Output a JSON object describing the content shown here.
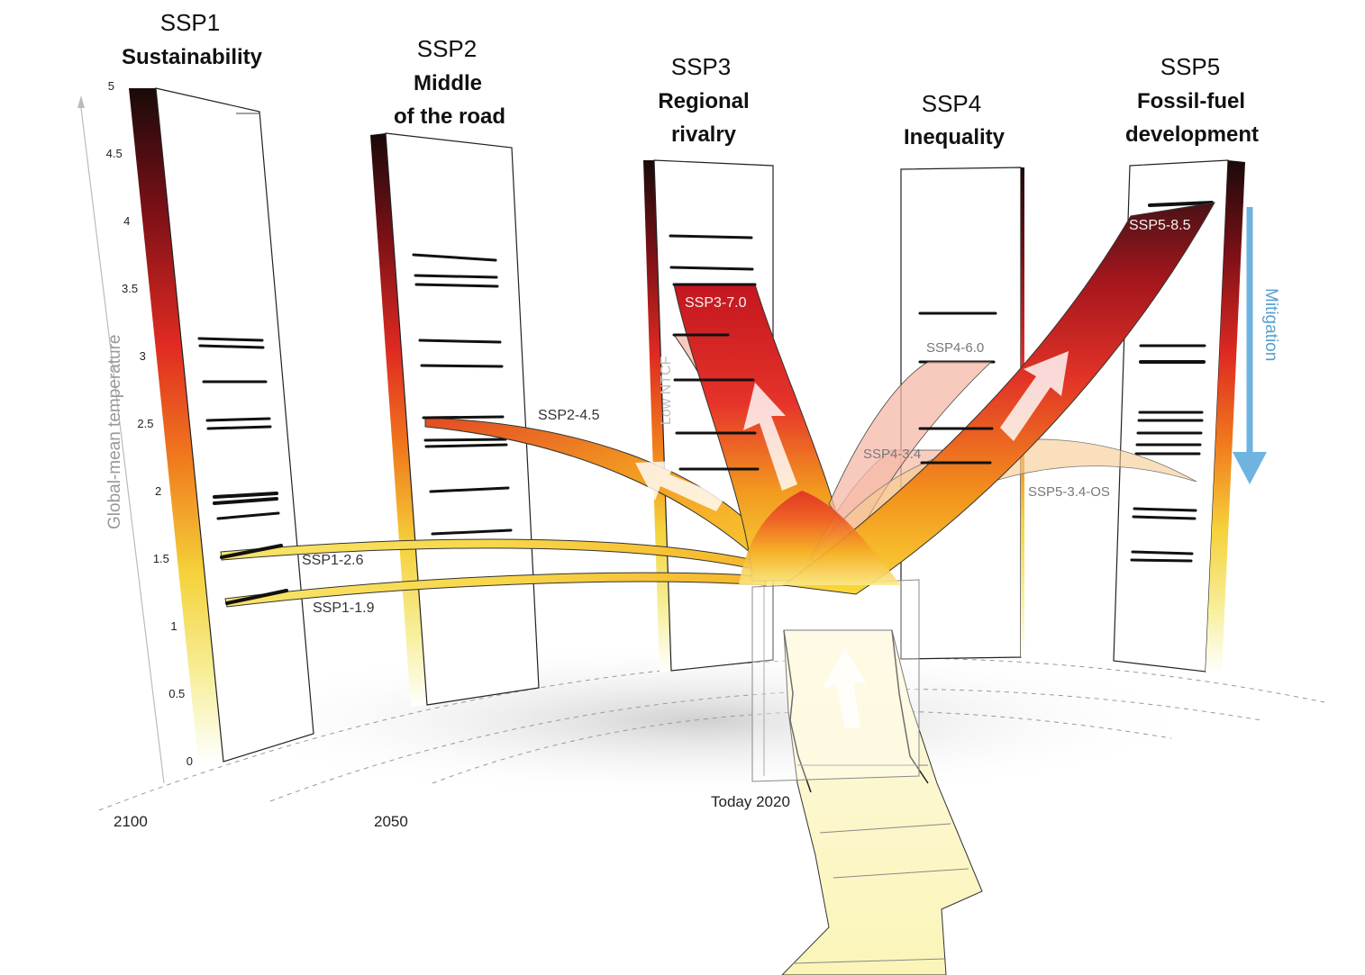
{
  "diagram": {
    "axis": {
      "title": "Global-mean temperature",
      "ticks": [
        "5",
        "4.5",
        "4",
        "3.5",
        "3",
        "2.5",
        "2",
        "1.5",
        "1",
        "0.5",
        "0"
      ]
    },
    "years": {
      "end": "2100",
      "mid": "2050",
      "today": "Today 2020"
    },
    "ssps": [
      {
        "id": "SSP1",
        "title": "Sustainability"
      },
      {
        "id": "SSP2",
        "title_line1": "Middle",
        "title_line2": "of the road"
      },
      {
        "id": "SSP3",
        "title_line1": "Regional",
        "title_line2": "rivalry"
      },
      {
        "id": "SSP4",
        "title": "Inequality"
      },
      {
        "id": "SSP5",
        "title_line1": "Fossil-fuel",
        "title_line2": "development"
      }
    ],
    "pathways": {
      "ssp1_19": "SSP1-1.9",
      "ssp1_26": "SSP1-2.6",
      "ssp2_45": "SSP2-4.5",
      "ssp3_70": "SSP3-7.0",
      "low_ntcf": "Low NTCF",
      "ssp4_60": "SSP4-6.0",
      "ssp4_34": "SSP4-3.4",
      "ssp5_85": "SSP5-8.5",
      "ssp5_34os": "SSP5-3.4-OS"
    },
    "mitigation_label": "Mitigation",
    "colors": {
      "mitigation_arrow": "#6fb3e0",
      "ribbon_hot": "#d81e25",
      "ribbon_warm": "#f6a21c",
      "ribbon_cool": "#f4e84a",
      "scale_max": "#1a0a0a"
    }
  }
}
